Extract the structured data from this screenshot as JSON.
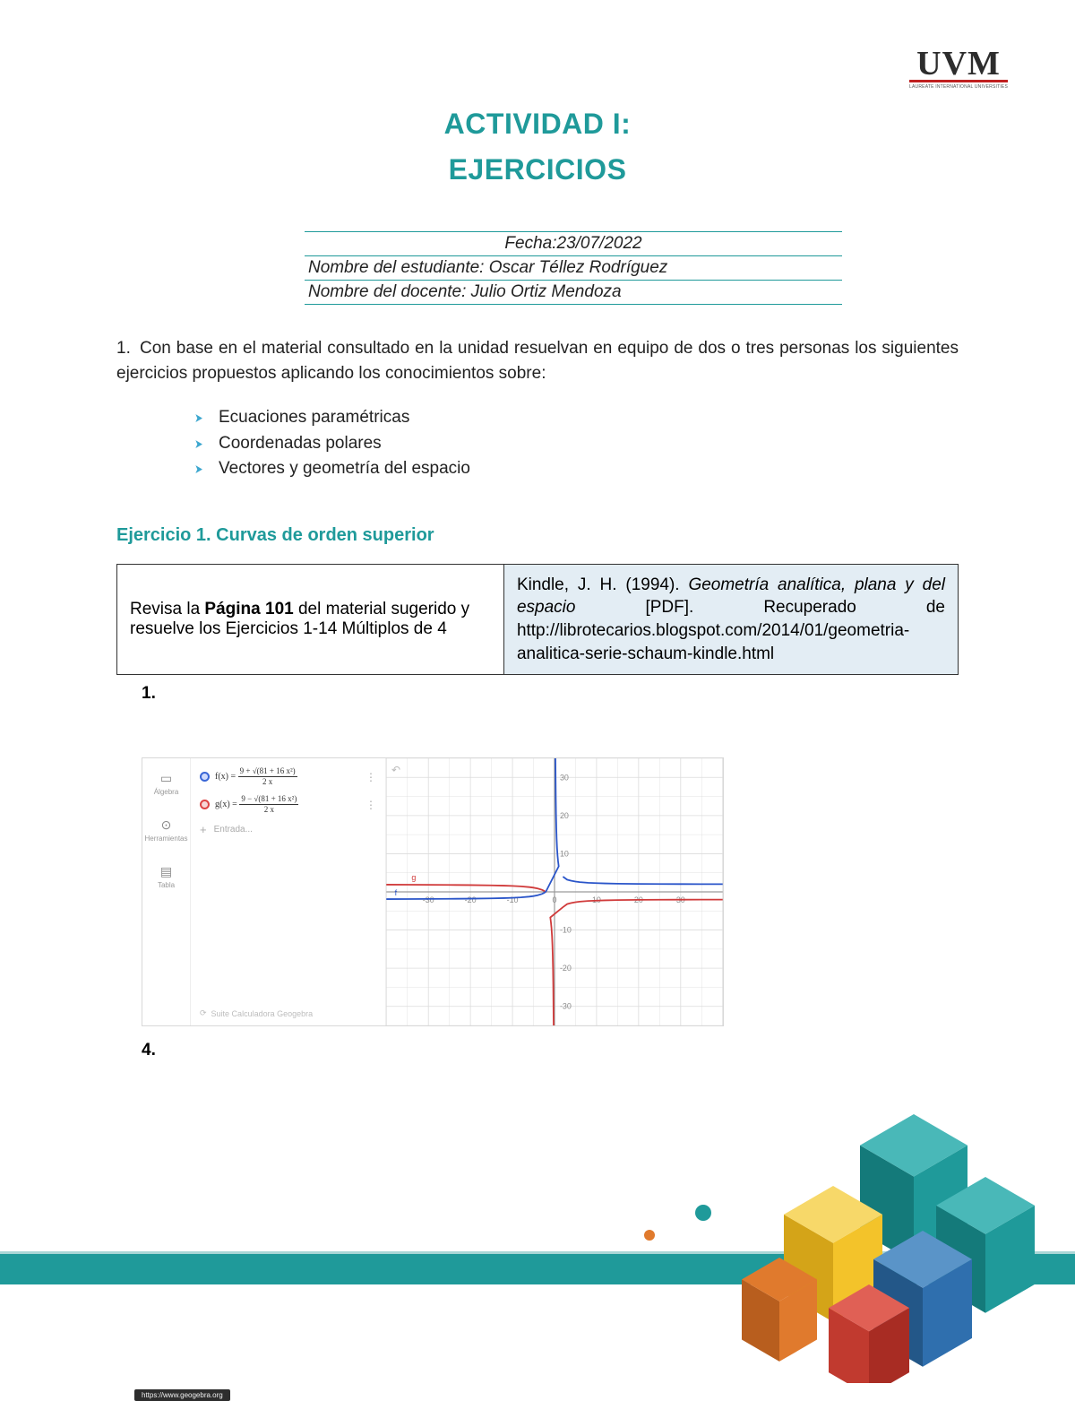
{
  "logo": {
    "text": "UVM",
    "sub": "LAUREATE INTERNATIONAL UNIVERSITIES"
  },
  "title": {
    "line1": "ACTIVIDAD I:",
    "line2": "EJERCICIOS"
  },
  "info": {
    "date_label": "Fecha:",
    "date": "23/07/2022",
    "student_label": "Nombre del estudiante:",
    "student": "Oscar Téllez Rodríguez",
    "teacher_label": "Nombre del docente:",
    "teacher": "Julio Ortiz Mendoza"
  },
  "instruction": {
    "num": "1.",
    "text": "Con base en el material consultado en la unidad resuelvan en equipo de dos o tres personas los siguientes ejercicios propuestos aplicando los conocimientos sobre:"
  },
  "bullets": [
    "Ecuaciones paramétricas",
    "Coordenadas polares",
    "Vectores y geometría del espacio"
  ],
  "exercise1": {
    "heading": "Ejercicio 1. Curvas de orden superior",
    "left_pre": "Revisa la ",
    "left_bold": "Página 101",
    "left_post": " del material sugerido y resuelve los Ejercicios 1-14 Múltiplos de 4",
    "right_author": "Kindle, J. H. (1994). ",
    "right_title_it": "Geometría analítica, plana y del espacio",
    "right_post": " [PDF]. Recuperado de http://librotecarios.blogspot.com/2014/01/geometria-analitica-serie-schaum-kindle.html"
  },
  "subnums": {
    "one": "1.",
    "four": "4."
  },
  "geo": {
    "side": [
      {
        "icon": "▭",
        "label": "Álgebra"
      },
      {
        "icon": "⊙",
        "label": "Herramientas"
      },
      {
        "icon": "▤",
        "label": "Tabla"
      }
    ],
    "f_label": "f(x) =",
    "f_num": "9 + √(81 + 16 x²)",
    "f_den": "2 x",
    "g_label": "g(x) =",
    "g_num": "9 − √(81 + 16 x²)",
    "g_den": "2 x",
    "entrada": "Entrada...",
    "footer": "Suite Calculadora Geogebra",
    "url": "https://www.geogebra.org",
    "undo": "↶",
    "colors": {
      "f": "#2a55c9",
      "g": "#d03a3a",
      "grid": "#dcdcdc",
      "axis": "#9a9a9a",
      "ticktext": "#8a8a8a"
    },
    "xrange": [
      -40,
      40
    ],
    "yrange": [
      -35,
      35
    ],
    "xticks": [
      -30,
      -20,
      -10,
      0,
      10,
      20,
      30
    ],
    "yticks": [
      -30,
      -20,
      -10,
      10,
      20,
      30
    ],
    "f_series": [
      [
        -40,
        -1.89
      ],
      [
        -35,
        -1.87
      ],
      [
        -30,
        -1.85
      ],
      [
        -25,
        -1.82
      ],
      [
        -20,
        -1.78
      ],
      [
        -15,
        -1.7
      ],
      [
        -12,
        -1.63
      ],
      [
        -10,
        -1.55
      ],
      [
        -8,
        -1.44
      ],
      [
        -6,
        -1.25
      ],
      [
        -5,
        -1.1
      ],
      [
        -4,
        -0.88
      ],
      [
        -3,
        -0.54
      ],
      [
        -2.5,
        -0.28
      ],
      [
        -2.2,
        -0.05
      ],
      [
        -2.0,
        0.18
      ],
      [
        1.0,
        6.7
      ],
      [
        0.85,
        8.0
      ],
      [
        0.72,
        9.5
      ],
      [
        0.6,
        11.5
      ],
      [
        0.5,
        14.0
      ],
      [
        0.42,
        17.0
      ],
      [
        0.35,
        20.5
      ],
      [
        0.3,
        24.5
      ],
      [
        0.26,
        29.0
      ],
      [
        0.23,
        33.0
      ],
      [
        0.21,
        35.0
      ],
      [
        2.0,
        4.0
      ],
      [
        3,
        3.2
      ],
      [
        4,
        2.9
      ],
      [
        5,
        2.7
      ],
      [
        6,
        2.55
      ],
      [
        8,
        2.38
      ],
      [
        10,
        2.28
      ],
      [
        12,
        2.22
      ],
      [
        15,
        2.15
      ],
      [
        20,
        2.09
      ],
      [
        25,
        2.06
      ],
      [
        30,
        2.04
      ],
      [
        35,
        2.03
      ],
      [
        40,
        2.02
      ]
    ],
    "g_series": [
      [
        -40,
        1.89
      ],
      [
        -35,
        1.87
      ],
      [
        -30,
        1.85
      ],
      [
        -25,
        1.82
      ],
      [
        -20,
        1.78
      ],
      [
        -15,
        1.7
      ],
      [
        -12,
        1.63
      ],
      [
        -10,
        1.55
      ],
      [
        -8,
        1.44
      ],
      [
        -6,
        1.25
      ],
      [
        -5,
        1.1
      ],
      [
        -4,
        0.88
      ],
      [
        -3,
        0.54
      ],
      [
        -2.5,
        0.28
      ],
      [
        -2.2,
        0.05
      ],
      [
        -2.0,
        -0.18
      ],
      [
        -0.21,
        -35.0
      ],
      [
        -0.23,
        -33.0
      ],
      [
        -0.26,
        -29.0
      ],
      [
        -0.3,
        -24.5
      ],
      [
        -0.35,
        -20.5
      ],
      [
        -0.42,
        -17.0
      ],
      [
        -0.5,
        -14.0
      ],
      [
        -0.6,
        -11.5
      ],
      [
        -0.72,
        -9.5
      ],
      [
        -0.85,
        -8.0
      ],
      [
        -1.0,
        -6.7
      ],
      [
        2.0,
        -4.0
      ],
      [
        3,
        -3.2
      ],
      [
        4,
        -2.9
      ],
      [
        5,
        -2.7
      ],
      [
        6,
        -2.55
      ],
      [
        8,
        -2.38
      ],
      [
        10,
        -2.28
      ],
      [
        12,
        -2.22
      ],
      [
        15,
        -2.15
      ],
      [
        20,
        -2.09
      ],
      [
        25,
        -2.06
      ],
      [
        30,
        -2.04
      ],
      [
        35,
        -2.03
      ],
      [
        40,
        -2.02
      ]
    ]
  },
  "footer": {
    "band_color": "#1f9a9a",
    "cubes": {
      "teal": "#1f9a9a",
      "teal_dark": "#147a7a",
      "teal_light": "#49b8b8",
      "yellow": "#f3c32a",
      "yellow_dark": "#d4a418",
      "yellow_light": "#f7d869",
      "blue": "#2f6fae",
      "blue_dark": "#235788",
      "blue_light": "#5a94c8",
      "red": "#c13a2f",
      "orange": "#e07a2d",
      "dot1": "#e07a2d",
      "dot2": "#1f9a9a"
    }
  }
}
